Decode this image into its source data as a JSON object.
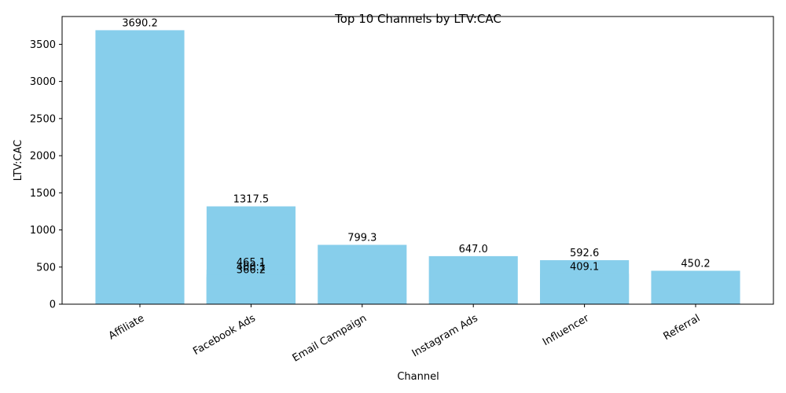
{
  "chart_data": {
    "type": "bar",
    "title": "Top 10 Channels by LTV:CAC",
    "xlabel": "Channel",
    "ylabel": "LTV:CAC",
    "categories": [
      "Affiliate",
      "Facebook Ads",
      "Email Campaign",
      "Instagram Ads",
      "Influencer",
      "Referral"
    ],
    "bars": [
      {
        "category": "Affiliate",
        "value": 3690.2
      },
      {
        "category": "Facebook Ads",
        "value": 1317.5
      },
      {
        "category": "Facebook Ads",
        "value": 465.1
      },
      {
        "category": "Facebook Ads",
        "value": 400.1
      },
      {
        "category": "Facebook Ads",
        "value": 366.2
      },
      {
        "category": "Email Campaign",
        "value": 799.3
      },
      {
        "category": "Instagram Ads",
        "value": 647.0
      },
      {
        "category": "Influencer",
        "value": 592.6
      },
      {
        "category": "Influencer",
        "value": 409.1
      },
      {
        "category": "Referral",
        "value": 450.2
      }
    ],
    "yticks": [
      0,
      500,
      1000,
      1500,
      2000,
      2500,
      3000,
      3500
    ],
    "ylim": [
      0,
      3874.7
    ],
    "grid": false,
    "legend": "none",
    "bar_color": "#87CEEB"
  }
}
